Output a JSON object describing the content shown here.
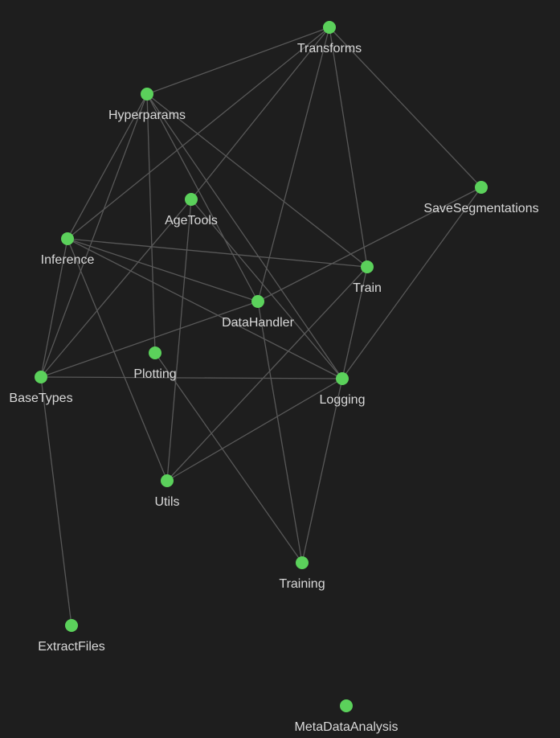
{
  "colors": {
    "background": "#1e1e1e",
    "edge": "#585858",
    "node": "#5bd15b",
    "label": "#d9d9d9"
  },
  "graph": {
    "nodes": [
      {
        "id": "transforms",
        "label": "Transforms"
      },
      {
        "id": "hyperparams",
        "label": "Hyperparams"
      },
      {
        "id": "savesegmentations",
        "label": "SaveSegmentations"
      },
      {
        "id": "agetools",
        "label": "AgeTools"
      },
      {
        "id": "inference",
        "label": "Inference"
      },
      {
        "id": "train",
        "label": "Train"
      },
      {
        "id": "datahandler",
        "label": "DataHandler"
      },
      {
        "id": "plotting",
        "label": "Plotting"
      },
      {
        "id": "basetypes",
        "label": "BaseTypes"
      },
      {
        "id": "logging",
        "label": "Logging"
      },
      {
        "id": "utils",
        "label": "Utils"
      },
      {
        "id": "training",
        "label": "Training"
      },
      {
        "id": "extractfiles",
        "label": "ExtractFiles"
      },
      {
        "id": "metadataanalysis",
        "label": "MetaDataAnalysis"
      }
    ],
    "edges": [
      [
        "transforms",
        "hyperparams"
      ],
      [
        "transforms",
        "inference"
      ],
      [
        "transforms",
        "agetools"
      ],
      [
        "transforms",
        "datahandler"
      ],
      [
        "transforms",
        "train"
      ],
      [
        "transforms",
        "savesegmentations"
      ],
      [
        "hyperparams",
        "inference"
      ],
      [
        "hyperparams",
        "basetypes"
      ],
      [
        "hyperparams",
        "plotting"
      ],
      [
        "hyperparams",
        "datahandler"
      ],
      [
        "hyperparams",
        "logging"
      ],
      [
        "hyperparams",
        "train"
      ],
      [
        "agetools",
        "basetypes"
      ],
      [
        "agetools",
        "utils"
      ],
      [
        "agetools",
        "logging"
      ],
      [
        "inference",
        "train"
      ],
      [
        "inference",
        "datahandler"
      ],
      [
        "inference",
        "logging"
      ],
      [
        "inference",
        "utils"
      ],
      [
        "inference",
        "basetypes"
      ],
      [
        "savesegmentations",
        "datahandler"
      ],
      [
        "savesegmentations",
        "logging"
      ],
      [
        "train",
        "logging"
      ],
      [
        "train",
        "utils"
      ],
      [
        "datahandler",
        "basetypes"
      ],
      [
        "datahandler",
        "training"
      ],
      [
        "basetypes",
        "logging"
      ],
      [
        "basetypes",
        "extractfiles"
      ],
      [
        "plotting",
        "training"
      ],
      [
        "logging",
        "utils"
      ],
      [
        "logging",
        "training"
      ]
    ]
  }
}
